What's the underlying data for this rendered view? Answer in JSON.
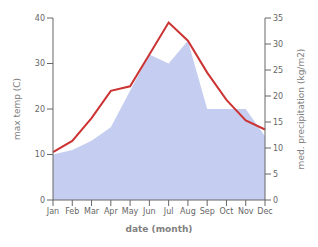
{
  "chart_data": {
    "type": "line",
    "categories": [
      "Jan",
      "Feb",
      "Mar",
      "Apr",
      "May",
      "Jun",
      "Jul",
      "Aug",
      "Sep",
      "Oct",
      "Nov",
      "Dec"
    ],
    "series": [
      {
        "type": "area",
        "color": "#c5cef0",
        "values": [
          10.0,
          11.0,
          13.0,
          16.0,
          24.0,
          32.0,
          30.0,
          35.0,
          20.0,
          20.0,
          20.0,
          14.0
        ]
      },
      {
        "type": "line",
        "color": "#cc3333",
        "values": [
          10.5,
          13.0,
          18.0,
          24.0,
          25.0,
          32.0,
          39.0,
          35.0,
          28.0,
          22.0,
          17.5,
          15.5
        ]
      }
    ],
    "xlabel": "date (month)",
    "ylabel": "max temp (C)",
    "y2label": "med. precipitation (kg/m2)",
    "ylim": [
      0,
      40
    ],
    "yticks": [
      0,
      10,
      20,
      30,
      40
    ],
    "y2lim": [
      0,
      35
    ],
    "y2ticks": [
      0,
      5,
      10,
      15,
      20,
      25,
      30,
      35
    ],
    "grid": false
  }
}
